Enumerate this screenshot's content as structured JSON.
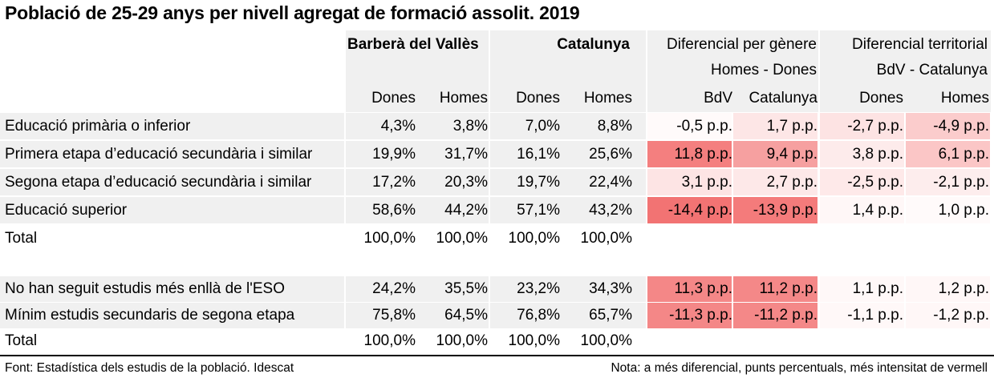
{
  "title": "Població de 25-29 anys per nivell agregat de formació assolit. 2019",
  "headers": {
    "barbera": "Barberà del Vallès",
    "catalunya": "Catalunya",
    "dif_genere": "Diferencial per gènere",
    "dif_genere_sub": "Homes - Dones",
    "dif_territorial": "Diferencial territorial",
    "dif_territorial_sub": "BdV - Catalunya",
    "cols": [
      "Dones",
      "Homes",
      "Dones",
      "Homes",
      "BdV",
      "Catalunya",
      "Dones",
      "Homes"
    ]
  },
  "rows": [
    {
      "label": "Educació primària o inferior",
      "values": [
        "4,3%",
        "3,8%",
        "7,0%",
        "8,8%"
      ],
      "diffs": [
        "-0,5 p.p.",
        "1,7 p.p.",
        "-2,7 p.p.",
        "-4,9 p.p."
      ],
      "diff_colors": [
        "#fffafa",
        "#fde6e6",
        "#fde3e3",
        "#fbcccc"
      ]
    },
    {
      "label": "Primera etapa d’educació secundària i similar",
      "values": [
        "19,9%",
        "31,7%",
        "16,1%",
        "25,6%"
      ],
      "diffs": [
        "11,8 p.p.",
        "9,4 p.p.",
        "3,8 p.p.",
        "6,1 p.p."
      ],
      "diff_colors": [
        "#f47f7f",
        "#f6a0a0",
        "#fdebeb",
        "#fbc6c6"
      ]
    },
    {
      "label": "Segona etapa d’educació secundària i similar",
      "values": [
        "17,2%",
        "20,3%",
        "19,7%",
        "22,4%"
      ],
      "diffs": [
        "3,1 p.p.",
        "2,7 p.p.",
        "-2,5 p.p.",
        "-2,1 p.p."
      ],
      "diff_colors": [
        "#fde4e4",
        "#fde8e8",
        "#fee9e9",
        "#fdeded"
      ]
    },
    {
      "label": "Educació superior",
      "values": [
        "58,6%",
        "44,2%",
        "57,1%",
        "43,2%"
      ],
      "diffs": [
        "-14,4 p.p.",
        "-13,9 p.p.",
        "1,4 p.p.",
        "1,0 p.p."
      ],
      "diff_colors": [
        "#f27373",
        "#f47b7b",
        "#fff7f7",
        "#fffafa"
      ]
    },
    {
      "label": "Total",
      "values": [
        "100,0%",
        "100,0%",
        "100,0%",
        "100,0%"
      ],
      "diffs": [
        "",
        "",
        "",
        ""
      ],
      "diff_colors": [
        "#ffffff",
        "#ffffff",
        "#ffffff",
        "#ffffff"
      ]
    }
  ],
  "rows2": [
    {
      "label": "No han seguit estudis més enllà de l'ESO",
      "values": [
        "24,2%",
        "35,5%",
        "23,2%",
        "34,3%"
      ],
      "diffs": [
        "11,3 p.p.",
        "11,2 p.p.",
        "1,1 p.p.",
        "1,2 p.p."
      ],
      "diff_colors": [
        "#f48787",
        "#f48888",
        "#fff8f8",
        "#fff7f7"
      ]
    },
    {
      "label": "Mínim estudis secundaris de segona etapa",
      "values": [
        "75,8%",
        "64,5%",
        "76,8%",
        "65,7%"
      ],
      "diffs": [
        "-11,3 p.p.",
        "-11,2 p.p.",
        "-1,1 p.p.",
        "-1,2 p.p."
      ],
      "diff_colors": [
        "#f48787",
        "#f48888",
        "#fff8f8",
        "#fff7f7"
      ]
    },
    {
      "label": "Total",
      "values": [
        "100,0%",
        "100,0%",
        "100,0%",
        "100,0%"
      ],
      "diffs": [
        "",
        "",
        "",
        ""
      ],
      "diff_colors": [
        "#ffffff",
        "#ffffff",
        "#ffffff",
        "#ffffff"
      ]
    }
  ],
  "footer": {
    "source": "Font: Estadística dels estudis de la població. Idescat",
    "note": "Nota: a més diferencial, punts percentuals, més intensitat de vermell"
  }
}
